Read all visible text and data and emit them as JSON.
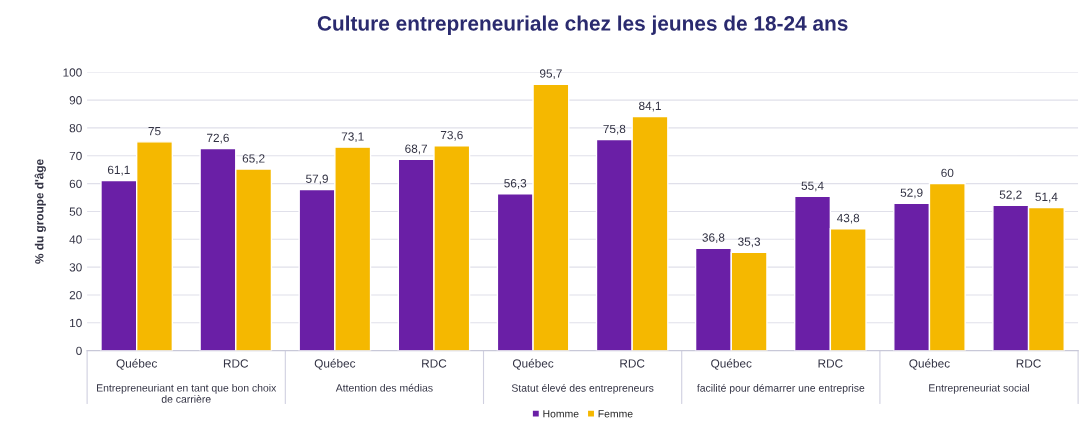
{
  "chart_data": {
    "type": "bar",
    "title": "Culture entrepreneuriale chez les jeunes de 18-24 ans",
    "ylabel": "% du groupe d'âge",
    "categories": [
      "Québec",
      "RDC",
      "Québec",
      "RDC",
      "Québec",
      "RDC",
      "Québec",
      "RDC",
      "Québec",
      "RDC"
    ],
    "series": [
      {
        "name": "Homme",
        "color": "#6a1fa6",
        "values": [
          61.1,
          72.6,
          57.9,
          68.7,
          56.3,
          75.8,
          36.8,
          55.4,
          52.9,
          52.2
        ],
        "value_labels": [
          "61,1",
          "72,6",
          "57,9",
          "68,7",
          "56,3",
          "75,8",
          "36,8",
          "55,4",
          "52,9",
          "52,2"
        ]
      },
      {
        "name": "Femme",
        "color": "#f5b800",
        "values": [
          75,
          65.2,
          73.1,
          73.6,
          95.7,
          84.1,
          35.3,
          43.8,
          60,
          51.4
        ],
        "value_labels": [
          "75",
          "65,2",
          "73,1",
          "73,6",
          "95,7",
          "84,1",
          "35,3",
          "43,8",
          "60",
          "51,4"
        ]
      }
    ],
    "annotations": [
      "Entrepreneuriant en tant que bon choix de carrière",
      "Attention des médias",
      "Statut élevé des entrepreneurs",
      "facilité pour démarrer une entreprise",
      "Entrepreneuriat social"
    ],
    "ylim": [
      0,
      100
    ],
    "yticks": [
      0,
      10,
      20,
      30,
      40,
      50,
      60,
      70,
      80,
      90,
      100
    ],
    "grid": "y",
    "legend": "bottom"
  }
}
